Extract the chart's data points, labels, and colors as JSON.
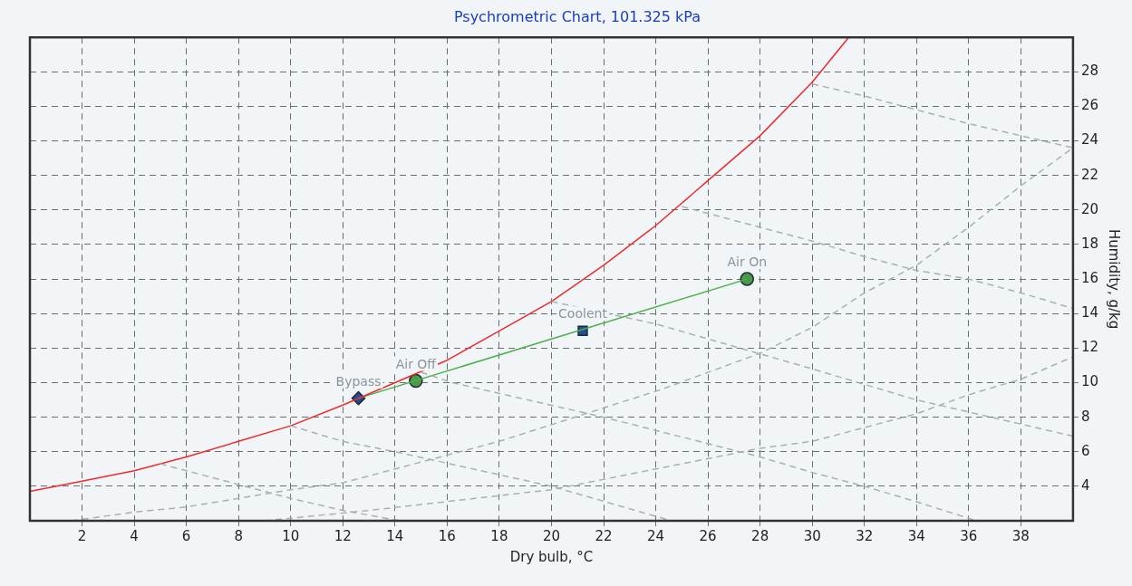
{
  "chart_data": {
    "type": "line",
    "title": "Psychrometric Chart, 101.325 kPa",
    "xlabel": "Dry bulb, °C",
    "ylabel": "Humidity, g/kg",
    "xlim": [
      0,
      40
    ],
    "ylim": [
      2,
      30
    ],
    "xticks": [
      2,
      4,
      6,
      8,
      10,
      12,
      14,
      16,
      18,
      20,
      22,
      24,
      26,
      28,
      30,
      32,
      34,
      36,
      38
    ],
    "yticks": [
      4,
      6,
      8,
      10,
      12,
      14,
      16,
      18,
      20,
      22,
      24,
      26,
      28
    ],
    "grid": true,
    "legend": false,
    "series": [
      {
        "type": "line",
        "color": "#a8b0b0",
        "line_style": "dashed",
        "marker": "none",
        "x": [
          30,
          32,
          34,
          36,
          38,
          40
        ],
        "values": [
          27.3,
          26.6,
          25.8,
          25.0,
          24.3,
          23.6
        ]
      },
      {
        "type": "line",
        "color": "#a8b0b0",
        "line_style": "dashed",
        "marker": "none",
        "x": [
          25,
          28,
          30,
          32,
          34,
          36,
          38,
          40
        ],
        "values": [
          20.2,
          19.0,
          18.2,
          17.3,
          16.5,
          16.0,
          15.2,
          14.3
        ]
      },
      {
        "type": "line",
        "color": "#a8b0b0",
        "line_style": "dashed",
        "marker": "none",
        "x": [
          20,
          24,
          30,
          34,
          40
        ],
        "values": [
          14.7,
          13.4,
          10.8,
          9.0,
          6.9
        ]
      },
      {
        "type": "line",
        "color": "#a8b0b0",
        "line_style": "dashed",
        "marker": "none",
        "x": [
          15,
          16.2,
          22,
          28,
          30,
          32,
          34,
          36.3
        ],
        "values": [
          10.6,
          10.0,
          8.0,
          5.7,
          4.8,
          4.0,
          3.1,
          2.0
        ]
      },
      {
        "type": "line",
        "color": "#a8b0b0",
        "line_style": "dashed",
        "marker": "none",
        "x": [
          10,
          12,
          14,
          20,
          24.6
        ],
        "values": [
          7.5,
          6.6,
          6.0,
          4.0,
          2.0
        ]
      },
      {
        "type": "line",
        "color": "#a8b0b0",
        "line_style": "dashed",
        "marker": "none",
        "x": [
          5,
          8,
          10,
          12,
          14.2
        ],
        "values": [
          5.3,
          4.1,
          3.3,
          2.6,
          2.0
        ]
      },
      {
        "type": "line",
        "color": "#a8b0b0",
        "line_style": "dashed",
        "marker": "none",
        "x": [
          1.6,
          4,
          6,
          8,
          10,
          12,
          13,
          18,
          24.2,
          28,
          30,
          32,
          34,
          36,
          38,
          40
        ],
        "values": [
          2.0,
          2.5,
          2.8,
          3.3,
          3.8,
          4.2,
          4.6,
          6.6,
          9.6,
          11.7,
          13.2,
          15.2,
          16.8,
          19.0,
          21.4,
          23.6
        ]
      },
      {
        "type": "line",
        "color": "#a8b0b0",
        "line_style": "dashed",
        "marker": "none",
        "x": [
          9,
          13,
          20,
          24,
          28,
          30,
          32,
          34,
          36,
          38,
          40
        ],
        "values": [
          2.0,
          2.6,
          3.8,
          5.0,
          6.2,
          6.6,
          7.4,
          8.2,
          9.3,
          10.2,
          11.5
        ]
      },
      {
        "color": "#ee2b2b",
        "line_style": "solid",
        "marker": "none",
        "x": [
          0,
          2,
          4,
          6,
          8,
          10,
          12,
          16,
          18,
          20,
          22,
          24,
          26,
          28,
          30,
          31.4
        ],
        "values": [
          3.7,
          4.3,
          4.9,
          5.7,
          6.6,
          7.5,
          8.7,
          11.3,
          13.0,
          14.7,
          16.8,
          19.1,
          21.7,
          24.3,
          27.4,
          30.0
        ]
      },
      {
        "color": "#4caf4c",
        "line_style": "solid",
        "marker": "none",
        "x": [
          12.6,
          27.5
        ],
        "values": [
          9.1,
          16.0
        ]
      },
      {
        "type": "scatter",
        "name": "Bypass",
        "color": "#1f4e9c",
        "marker": "diamond",
        "x": [
          12.6
        ],
        "values": [
          9.1
        ]
      },
      {
        "type": "scatter",
        "name": "Air Off",
        "color": "#4a9a4a",
        "marker": "circle",
        "x": [
          14.8
        ],
        "values": [
          10.1
        ]
      },
      {
        "type": "scatter",
        "name": "Coolent",
        "color": "#1f4e9c",
        "marker": "square",
        "x": [
          21.2
        ],
        "values": [
          13.0
        ]
      },
      {
        "type": "scatter",
        "name": "Air On",
        "color": "#4a9a4a",
        "marker": "circle",
        "x": [
          27.5
        ],
        "values": [
          16.0
        ]
      }
    ]
  }
}
